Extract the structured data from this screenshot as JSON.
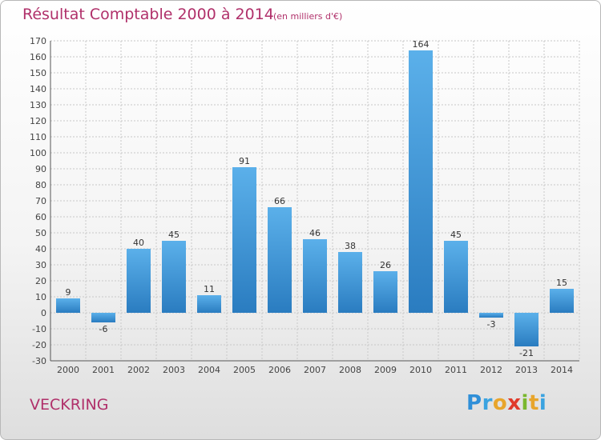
{
  "header": {
    "title": "Résultat Comptable 2000 à 2014",
    "subtitle": "(en milliers d'€)"
  },
  "footer": {
    "commune": "VECKRING",
    "logo_text": "Proxiti"
  },
  "colors": {
    "title": "#b0306a",
    "bar_light": "#5bb0ea",
    "bar_dark": "#2a7cc0",
    "grid": "#c8c8c8"
  },
  "chart_data": {
    "type": "bar",
    "title": "Résultat Comptable 2000 à 2014",
    "subtitle": "(en milliers d'€)",
    "categories": [
      "2000",
      "2001",
      "2002",
      "2003",
      "2004",
      "2005",
      "2006",
      "2007",
      "2008",
      "2009",
      "2010",
      "2011",
      "2012",
      "2013",
      "2014"
    ],
    "values": [
      9,
      -6,
      40,
      45,
      11,
      91,
      66,
      46,
      38,
      26,
      164,
      45,
      -3,
      -21,
      15
    ],
    "ylim": [
      -30,
      170
    ],
    "ytick_step": 10,
    "grid": true,
    "legend": "none",
    "xlabel": "",
    "ylabel": ""
  }
}
